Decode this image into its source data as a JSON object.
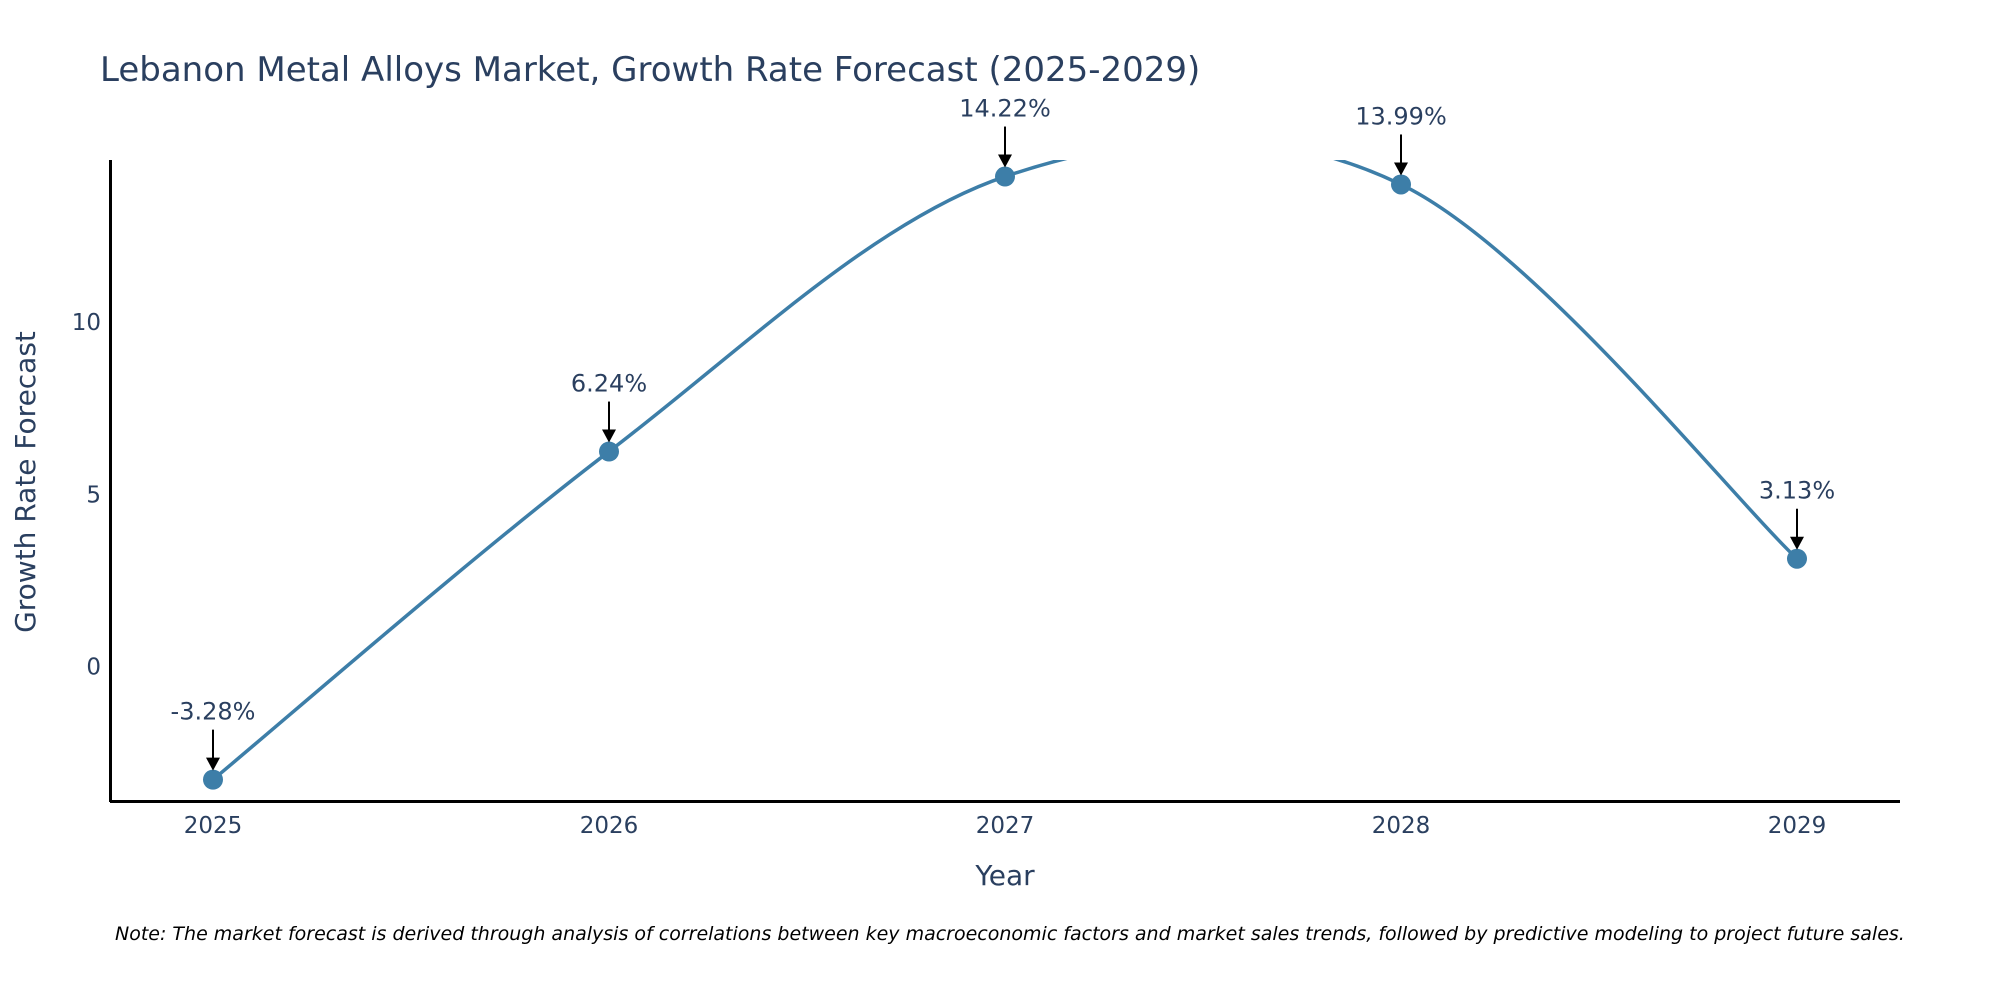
{
  "chart_data": {
    "type": "line",
    "title": "Lebanon Metal Alloys Market, Growth Rate Forecast (2025-2029)",
    "xlabel": "Year",
    "ylabel": "Growth Rate Forecast",
    "x": [
      "2025",
      "2026",
      "2027",
      "2028",
      "2029"
    ],
    "series": [
      {
        "name": "Growth Rate Forecast",
        "values": [
          -3.28,
          6.24,
          14.22,
          13.99,
          3.13
        ],
        "labels": [
          "-3.28%",
          "6.24%",
          "14.22%",
          "13.99%",
          "3.13%"
        ],
        "color": "#3d7ea8"
      }
    ],
    "y_ticks": [
      "0",
      "5",
      "10"
    ],
    "y_tick_values": [
      0,
      5,
      10
    ],
    "ylim": [
      -3.9,
      14.7
    ],
    "grid": false,
    "legend": "none",
    "note": "Note: The market forecast is derived through analysis of correlations between key macroeconomic factors and market sales trends, followed by predictive modeling to project future sales."
  },
  "colors": {
    "line": "#3d7ea8",
    "marker": "#3d7ea8",
    "text": "#2a3f5f",
    "axis": "#000000"
  }
}
